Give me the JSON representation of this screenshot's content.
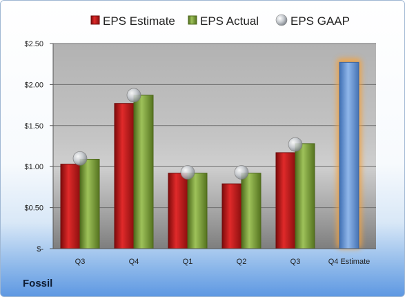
{
  "company": "Fossil",
  "chart_data": {
    "type": "bar",
    "categories": [
      "Q3",
      "Q4",
      "Q1",
      "Q2",
      "Q3",
      "Q4 Estimate"
    ],
    "series": [
      {
        "name": "EPS Estimate",
        "color": "#c81b1b",
        "values": [
          1.03,
          1.77,
          0.92,
          0.79,
          1.17,
          null
        ]
      },
      {
        "name": "EPS Actual",
        "color": "#7a9c3a",
        "values": [
          1.09,
          1.87,
          0.92,
          0.92,
          1.28,
          null
        ]
      },
      {
        "name": "EPS GAAP",
        "color": "#b8bdc4",
        "values": [
          1.1,
          1.87,
          0.93,
          0.93,
          1.27,
          null
        ]
      }
    ],
    "projection": {
      "category": "Q4 Estimate",
      "value": 2.27,
      "color": "#5b8fd3"
    },
    "yticks": [
      "$-",
      "$0.50",
      "$1.00",
      "$1.50",
      "$2.00",
      "$2.50"
    ],
    "ylim": [
      0,
      2.5
    ],
    "grid": true,
    "legend_position": "top"
  }
}
